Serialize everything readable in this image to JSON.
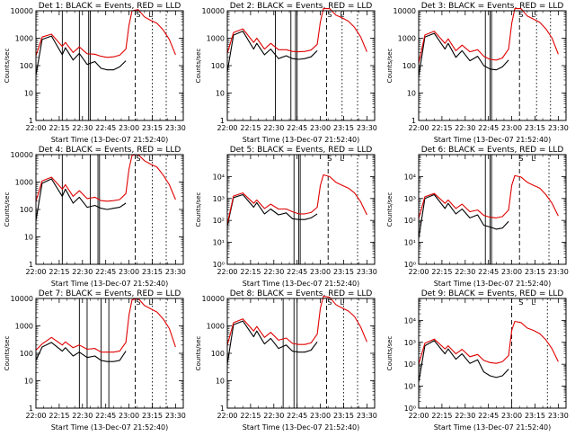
{
  "colors": {
    "events": "#000000",
    "lld": "#e00000"
  },
  "x_tick_labels": [
    "22:00",
    "22:15",
    "22:30",
    "22:45",
    "23:00",
    "23:15",
    "23:30"
  ],
  "x_ticks_min": [
    0,
    15,
    30,
    45,
    60,
    75,
    90
  ],
  "y_axis_label": "Counts/sec",
  "x_axis_label": "Start Time (13-Dec-07 21:52:40)",
  "y_ticks_plain": [
    "1",
    "10",
    "100",
    "1000",
    "10000"
  ],
  "y_ticks_exp": [
    "10⁰",
    "10¹",
    "10²",
    "10³",
    "10⁴"
  ],
  "annotations": {
    "s": "S",
    "l": "L"
  },
  "chart_data": [
    {
      "type": "line",
      "title": "Det 1: BLACK = Events, RED = LLD",
      "ylabel": "Counts/sec",
      "xlabel": "Start Time (13-Dec-07 21:52:40)",
      "y_scale": "log",
      "ylim": [
        1,
        10000
      ],
      "y_tick_style": "plain",
      "x_min": [
        0,
        4,
        10,
        17,
        19,
        24,
        28,
        33,
        38,
        42,
        46,
        50,
        54,
        58,
        60,
        62,
        66,
        70,
        74,
        78,
        82,
        86,
        90
      ],
      "series": [
        {
          "name": "BLACK = Events",
          "values": [
            45,
            900,
            1200,
            250,
            450,
            160,
            280,
            110,
            140,
            80,
            70,
            70,
            90,
            150,
            null,
            null,
            null,
            null,
            null,
            null,
            null,
            null,
            null
          ]
        },
        {
          "name": "RED = LLD",
          "values": [
            230,
            1100,
            1400,
            500,
            700,
            300,
            480,
            270,
            260,
            220,
            200,
            210,
            240,
            400,
            3000,
            10000,
            11000,
            6000,
            4500,
            3500,
            2000,
            900,
            250
          ]
        }
      ],
      "solid_lines_min": [
        17,
        28,
        34,
        35
      ],
      "dashed_lines_min": [
        64
      ],
      "dotted_lines_min": [
        75,
        84
      ]
    },
    {
      "type": "line",
      "title": "Det 2: BLACK = Events, RED = LLD",
      "ylabel": "Counts/sec",
      "xlabel": "Start Time (13-Dec-07 21:52:40)",
      "y_scale": "log",
      "ylim": [
        1,
        10000
      ],
      "y_tick_style": "plain",
      "x_min": [
        0,
        4,
        10,
        17,
        19,
        24,
        28,
        33,
        38,
        42,
        46,
        50,
        54,
        58,
        60,
        62,
        66,
        70,
        74,
        78,
        82,
        86,
        90
      ],
      "series": [
        {
          "name": "BLACK = Events",
          "values": [
            60,
            1300,
            1800,
            400,
            650,
            250,
            400,
            180,
            230,
            180,
            170,
            180,
            210,
            350,
            null,
            null,
            null,
            null,
            null,
            null,
            null,
            null,
            null
          ]
        },
        {
          "name": "RED = LLD",
          "values": [
            280,
            1600,
            2200,
            700,
            1000,
            400,
            650,
            380,
            380,
            330,
            320,
            330,
            370,
            600,
            4000,
            12000,
            12000,
            7000,
            5500,
            4200,
            2500,
            1100,
            320
          ]
        }
      ],
      "solid_lines_min": [
        31,
        41,
        44,
        45
      ],
      "dashed_lines_min": [
        64
      ],
      "dotted_lines_min": [
        74,
        84
      ]
    },
    {
      "type": "line",
      "title": "Det 3: BLACK = Events, RED = LLD",
      "ylabel": "Counts/sec",
      "xlabel": "Start Time (13-Dec-07 21:52:40)",
      "y_scale": "log",
      "ylim": [
        1,
        10000
      ],
      "y_tick_style": "plain",
      "x_min": [
        0,
        4,
        10,
        17,
        19,
        24,
        28,
        33,
        38,
        42,
        46,
        50,
        54,
        58,
        60,
        62,
        66,
        70,
        74,
        78,
        82,
        86,
        90
      ],
      "series": [
        {
          "name": "BLACK = Events",
          "values": [
            40,
            1100,
            1500,
            400,
            650,
            200,
            350,
            150,
            220,
            100,
            75,
            70,
            90,
            160,
            null,
            null,
            null,
            null,
            null,
            null,
            null,
            null,
            null
          ]
        },
        {
          "name": "RED = LLD",
          "values": [
            120,
            1300,
            1800,
            650,
            950,
            350,
            560,
            320,
            380,
            220,
            170,
            160,
            190,
            400,
            3500,
            12000,
            12000,
            6500,
            5000,
            3800,
            2200,
            1000,
            260
          ]
        }
      ],
      "solid_lines_min": [
        43,
        46,
        47
      ],
      "dashed_lines_min": [
        65
      ],
      "dotted_lines_min": [
        76,
        85
      ]
    },
    {
      "type": "line",
      "title": "Det 4: BLACK = Events, RED = LLD",
      "ylabel": "Counts/sec",
      "xlabel": "Start Time (13-Dec-07 21:52:40)",
      "y_scale": "log",
      "ylim": [
        1,
        10000
      ],
      "y_tick_style": "plain",
      "x_min": [
        0,
        4,
        10,
        17,
        19,
        24,
        28,
        33,
        38,
        42,
        46,
        50,
        54,
        58,
        60,
        62,
        66,
        70,
        74,
        78,
        82,
        86,
        90
      ],
      "series": [
        {
          "name": "BLACK = Events",
          "values": [
            40,
            900,
            1300,
            300,
            550,
            170,
            280,
            120,
            140,
            110,
            100,
            110,
            120,
            170,
            null,
            null,
            null,
            null,
            null,
            null,
            null,
            null,
            null
          ]
        },
        {
          "name": "RED = LLD",
          "values": [
            200,
            1100,
            1500,
            550,
            800,
            300,
            480,
            250,
            280,
            210,
            200,
            210,
            230,
            380,
            3000,
            9500,
            10000,
            6000,
            4500,
            3500,
            1800,
            800,
            230
          ]
        }
      ],
      "solid_lines_min": [
        17,
        35,
        40,
        41
      ],
      "dashed_lines_min": [
        64
      ],
      "dotted_lines_min": [
        75,
        84
      ]
    },
    {
      "type": "line",
      "title": "Det 5: BLACK = Events, RED = LLD",
      "ylabel": "Counts/sec",
      "xlabel": "Start Time (13-Dec-07 21:52:40)",
      "y_scale": "log",
      "ylim": [
        1,
        100000
      ],
      "y_tick_style": "exponent",
      "x_min": [
        0,
        4,
        10,
        17,
        19,
        24,
        28,
        33,
        38,
        42,
        46,
        50,
        54,
        58,
        60,
        62,
        66,
        70,
        74,
        78,
        82,
        86,
        90
      ],
      "series": [
        {
          "name": "BLACK = Events",
          "values": [
            55,
            1100,
            1500,
            400,
            650,
            200,
            330,
            180,
            220,
            120,
            110,
            110,
            130,
            200,
            null,
            null,
            null,
            null,
            null,
            null,
            null,
            null,
            null
          ]
        },
        {
          "name": "RED = LLD",
          "values": [
            70,
            1300,
            1800,
            600,
            850,
            350,
            550,
            330,
            330,
            250,
            200,
            200,
            230,
            400,
            4000,
            12000,
            10000,
            5500,
            4000,
            3000,
            1800,
            700,
            180
          ]
        }
      ],
      "solid_lines_min": [
        43,
        46,
        47
      ],
      "dashed_lines_min": [
        65
      ],
      "dotted_lines_min": [
        84
      ]
    },
    {
      "type": "line",
      "title": "Det 6: BLACK = Events, RED = LLD",
      "ylabel": "Counts/sec",
      "xlabel": "Start Time (13-Dec-07 21:52:40)",
      "y_scale": "log",
      "ylim": [
        1,
        100000
      ],
      "y_tick_style": "exponent",
      "x_min": [
        0,
        4,
        10,
        17,
        19,
        24,
        28,
        33,
        38,
        42,
        46,
        50,
        54,
        58,
        60,
        62,
        66,
        70,
        74,
        78,
        82,
        86,
        90
      ],
      "series": [
        {
          "name": "BLACK = Events",
          "values": [
            15,
            1000,
            1500,
            350,
            600,
            200,
            330,
            130,
            180,
            60,
            50,
            40,
            45,
            90,
            null,
            null,
            null,
            null,
            null,
            null,
            null,
            null,
            null
          ]
        },
        {
          "name": "RED = LLD",
          "values": [
            120,
            1200,
            1700,
            600,
            850,
            350,
            550,
            250,
            300,
            170,
            140,
            130,
            150,
            300,
            4000,
            11000,
            9500,
            5500,
            4000,
            3000,
            1500,
            600,
            160
          ]
        }
      ],
      "solid_lines_min": [
        43,
        46,
        47
      ],
      "dashed_lines_min": [
        65
      ],
      "dotted_lines_min": [
        84
      ]
    },
    {
      "type": "line",
      "title": "Det 7: BLACK = Events, RED = LLD",
      "ylabel": "Counts/sec",
      "xlabel": "Start Time (13-Dec-07 21:52:40)",
      "y_scale": "log",
      "ylim": [
        1,
        10000
      ],
      "y_tick_style": "plain",
      "x_min": [
        0,
        4,
        10,
        17,
        19,
        24,
        28,
        33,
        38,
        42,
        46,
        50,
        54,
        58,
        60,
        62,
        66,
        70,
        74,
        78,
        82,
        86,
        90
      ],
      "series": [
        {
          "name": "BLACK = Events",
          "values": [
            55,
            170,
            250,
            120,
            160,
            80,
            110,
            70,
            80,
            55,
            50,
            50,
            55,
            120,
            null,
            null,
            null,
            null,
            null,
            null,
            null,
            null,
            null
          ]
        },
        {
          "name": "RED = LLD",
          "values": [
            130,
            220,
            380,
            200,
            260,
            160,
            200,
            140,
            150,
            110,
            110,
            110,
            120,
            250,
            2500,
            9000,
            10000,
            5500,
            4200,
            3200,
            1800,
            800,
            170
          ]
        }
      ],
      "solid_lines_min": [
        28,
        33,
        42,
        47
      ],
      "dashed_lines_min": [
        64
      ],
      "dotted_lines_min": [
        75,
        84
      ]
    },
    {
      "type": "line",
      "title": "Det 8: BLACK = Events, RED = LLD",
      "ylabel": "Counts/sec",
      "xlabel": "Start Time (13-Dec-07 21:52:40)",
      "y_scale": "log",
      "ylim": [
        1,
        10000
      ],
      "y_tick_style": "plain",
      "x_min": [
        0,
        4,
        10,
        17,
        19,
        24,
        28,
        33,
        38,
        42,
        46,
        50,
        54,
        58,
        60,
        62,
        66,
        70,
        74,
        78,
        82,
        86,
        90
      ],
      "series": [
        {
          "name": "BLACK = Events",
          "values": [
            40,
            1100,
            1500,
            400,
            650,
            220,
            350,
            150,
            200,
            120,
            110,
            110,
            130,
            260,
            null,
            null,
            null,
            null,
            null,
            null,
            null,
            null,
            null
          ]
        },
        {
          "name": "RED = LLD",
          "values": [
            200,
            1300,
            1800,
            650,
            950,
            380,
            580,
            300,
            360,
            230,
            210,
            210,
            240,
            500,
            4500,
            12000,
            11000,
            6000,
            4500,
            3500,
            2200,
            900,
            260
          ]
        }
      ],
      "solid_lines_min": [
        36,
        43,
        45
      ],
      "dashed_lines_min": [
        64
      ],
      "dotted_lines_min": [
        75,
        84
      ]
    },
    {
      "type": "line",
      "title": "Det 9: BLACK = Events, RED = LLD",
      "ylabel": "Counts/sec",
      "xlabel": "Start Time (13-Dec-07 21:52:40)",
      "y_scale": "log",
      "ylim": [
        1,
        100000
      ],
      "y_tick_style": "exponent",
      "x_min": [
        0,
        4,
        10,
        17,
        19,
        24,
        28,
        33,
        38,
        42,
        46,
        50,
        54,
        58,
        60,
        62,
        66,
        70,
        74,
        78,
        82,
        86,
        90
      ],
      "series": [
        {
          "name": "BLACK = Events",
          "values": [
            15,
            700,
            1200,
            300,
            500,
            170,
            300,
            110,
            160,
            45,
            30,
            25,
            30,
            60,
            null,
            null,
            null,
            null,
            null,
            null,
            null,
            null,
            null
          ]
        },
        {
          "name": "RED = LLD",
          "values": [
            100,
            900,
            1400,
            500,
            700,
            300,
            480,
            220,
            280,
            150,
            120,
            110,
            130,
            250,
            3500,
            9000,
            8000,
            4500,
            3500,
            2500,
            1300,
            500,
            130
          ]
        }
      ],
      "solid_lines_min": [],
      "dashed_lines_min": [
        60
      ],
      "dotted_lines_min": [
        83
      ]
    }
  ]
}
